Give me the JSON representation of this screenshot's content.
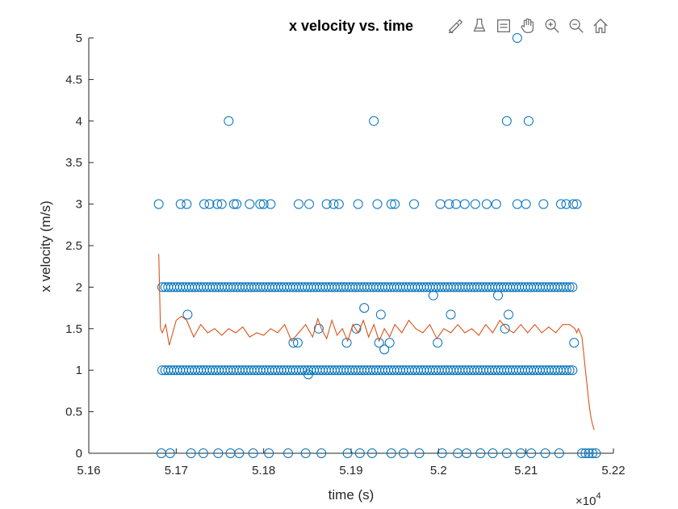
{
  "toolbar": {
    "items": [
      {
        "icon": "brush-data-icon"
      },
      {
        "icon": "colorbar-icon"
      },
      {
        "icon": "legend-icon"
      },
      {
        "icon": "pan-hand-icon"
      },
      {
        "icon": "zoom-in-icon"
      },
      {
        "icon": "zoom-out-icon"
      },
      {
        "icon": "home-icon"
      }
    ]
  },
  "chart_data": {
    "type": "scatter",
    "title": "x velocity vs. time",
    "xlabel": "time (s)",
    "ylabel": "x velocity (m/s)",
    "xlim": [
      51600,
      52200
    ],
    "ylim": [
      0,
      5
    ],
    "x_ticks": [
      51600,
      51700,
      51800,
      51900,
      52000,
      52100,
      52200
    ],
    "x_tick_labels": [
      "5.16",
      "5.17",
      "5.18",
      "5.19",
      "5.2",
      "5.21",
      "5.22"
    ],
    "x_exponent_label": "×10",
    "x_exponent_power": "4",
    "y_ticks": [
      0,
      0.5,
      1,
      1.5,
      2,
      2.5,
      3,
      3.5,
      4,
      4.5,
      5
    ],
    "y_tick_labels": [
      "0",
      "0.5",
      "1",
      "1.5",
      "2",
      "2.5",
      "3",
      "3.5",
      "4",
      "4.5",
      "5"
    ],
    "grid": false,
    "colors": {
      "scatter": "#0072BD",
      "line": "#D95319"
    },
    "series": [
      {
        "kind": "scatter",
        "points": [
          {
            "x": 51680,
            "y": 3
          },
          {
            "x": 51705,
            "y": 3
          },
          {
            "x": 51712,
            "y": 3
          },
          {
            "x": 51732,
            "y": 3
          },
          {
            "x": 51738,
            "y": 3
          },
          {
            "x": 51747,
            "y": 3
          },
          {
            "x": 51752,
            "y": 3
          },
          {
            "x": 51766,
            "y": 3
          },
          {
            "x": 51769,
            "y": 3
          },
          {
            "x": 51784,
            "y": 3
          },
          {
            "x": 51796,
            "y": 3
          },
          {
            "x": 51800,
            "y": 3
          },
          {
            "x": 51808,
            "y": 3
          },
          {
            "x": 51840,
            "y": 3
          },
          {
            "x": 51852,
            "y": 3
          },
          {
            "x": 51872,
            "y": 3
          },
          {
            "x": 51880,
            "y": 3
          },
          {
            "x": 51886,
            "y": 3
          },
          {
            "x": 51908,
            "y": 3
          },
          {
            "x": 51930,
            "y": 3
          },
          {
            "x": 51946,
            "y": 3
          },
          {
            "x": 51950,
            "y": 3
          },
          {
            "x": 51972,
            "y": 3
          },
          {
            "x": 52002,
            "y": 3
          },
          {
            "x": 52012,
            "y": 3
          },
          {
            "x": 52020,
            "y": 3
          },
          {
            "x": 52030,
            "y": 3
          },
          {
            "x": 52042,
            "y": 3
          },
          {
            "x": 52055,
            "y": 3
          },
          {
            "x": 52066,
            "y": 3
          },
          {
            "x": 52090,
            "y": 3
          },
          {
            "x": 52100,
            "y": 3
          },
          {
            "x": 52120,
            "y": 3
          },
          {
            "x": 52140,
            "y": 3
          },
          {
            "x": 52146,
            "y": 3
          },
          {
            "x": 52154,
            "y": 3
          },
          {
            "x": 52158,
            "y": 3
          },
          {
            "x": 51760,
            "y": 4
          },
          {
            "x": 51926,
            "y": 4
          },
          {
            "x": 52078,
            "y": 4
          },
          {
            "x": 52103,
            "y": 4
          },
          {
            "x": 52090,
            "y": 5
          },
          {
            "x": 51713,
            "y": 1.67
          },
          {
            "x": 51915,
            "y": 1.75
          },
          {
            "x": 51934,
            "y": 1.67
          },
          {
            "x": 52014,
            "y": 1.67
          },
          {
            "x": 52080,
            "y": 1.67
          },
          {
            "x": 51906,
            "y": 1.5
          },
          {
            "x": 51863,
            "y": 1.5
          },
          {
            "x": 52076,
            "y": 1.5
          },
          {
            "x": 51895,
            "y": 1.33
          },
          {
            "x": 51932,
            "y": 1.33
          },
          {
            "x": 51944,
            "y": 1.33
          },
          {
            "x": 51834,
            "y": 1.33
          },
          {
            "x": 51839,
            "y": 1.33
          },
          {
            "x": 51999,
            "y": 1.33
          },
          {
            "x": 52155,
            "y": 1.33
          },
          {
            "x": 51938,
            "y": 1.25
          },
          {
            "x": 51851,
            "y": 0.95
          },
          {
            "x": 51994,
            "y": 1.9
          },
          {
            "x": 52068,
            "y": 1.9
          },
          {
            "x": 51683,
            "y": 0
          },
          {
            "x": 51693,
            "y": 0
          },
          {
            "x": 51717,
            "y": 0
          },
          {
            "x": 51731,
            "y": 0
          },
          {
            "x": 51748,
            "y": 0
          },
          {
            "x": 51762,
            "y": 0
          },
          {
            "x": 51772,
            "y": 0
          },
          {
            "x": 51788,
            "y": 0
          },
          {
            "x": 51806,
            "y": 0
          },
          {
            "x": 51828,
            "y": 0
          },
          {
            "x": 51848,
            "y": 0
          },
          {
            "x": 51866,
            "y": 0
          },
          {
            "x": 51896,
            "y": 0
          },
          {
            "x": 51910,
            "y": 0
          },
          {
            "x": 51924,
            "y": 0
          },
          {
            "x": 51946,
            "y": 0
          },
          {
            "x": 51960,
            "y": 0
          },
          {
            "x": 51978,
            "y": 0
          },
          {
            "x": 52004,
            "y": 0
          },
          {
            "x": 52022,
            "y": 0
          },
          {
            "x": 52032,
            "y": 0
          },
          {
            "x": 52048,
            "y": 0
          },
          {
            "x": 52062,
            "y": 0
          },
          {
            "x": 52078,
            "y": 0
          },
          {
            "x": 52094,
            "y": 0
          },
          {
            "x": 52106,
            "y": 0
          },
          {
            "x": 52122,
            "y": 0
          },
          {
            "x": 52138,
            "y": 0
          },
          {
            "x": 52164,
            "y": 0
          },
          {
            "x": 52168,
            "y": 0
          },
          {
            "x": 52172,
            "y": 0
          },
          {
            "x": 52176,
            "y": 0
          },
          {
            "x": 52180,
            "y": 0
          }
        ]
      },
      {
        "kind": "line",
        "x": [
          51680,
          51682,
          51684,
          51688,
          51692,
          51696,
          51700,
          51706,
          51712,
          51720,
          51728,
          51736,
          51744,
          51752,
          51760,
          51768,
          51776,
          51784,
          51792,
          51800,
          51808,
          51816,
          51824,
          51832,
          51840,
          51848,
          51856,
          51862,
          51866,
          51872,
          51878,
          51884,
          51890,
          51896,
          51902,
          51908,
          51914,
          51920,
          51926,
          51932,
          51938,
          51944,
          51950,
          51958,
          51966,
          51974,
          51982,
          51990,
          51998,
          52006,
          52014,
          52022,
          52030,
          52038,
          52046,
          52054,
          52062,
          52070,
          52078,
          52086,
          52094,
          52102,
          52110,
          52118,
          52126,
          52134,
          52142,
          52150,
          52156,
          52158,
          52160,
          52162,
          52164,
          52166,
          52168,
          52170,
          52172,
          52174,
          52176,
          52178
        ],
        "y": [
          2.4,
          1.5,
          1.45,
          1.55,
          1.3,
          1.45,
          1.6,
          1.65,
          1.6,
          1.4,
          1.55,
          1.45,
          1.5,
          1.42,
          1.5,
          1.45,
          1.52,
          1.4,
          1.45,
          1.42,
          1.5,
          1.45,
          1.55,
          1.35,
          1.45,
          1.55,
          1.4,
          1.62,
          1.5,
          1.38,
          1.6,
          1.42,
          1.5,
          1.35,
          1.55,
          1.45,
          1.6,
          1.4,
          1.55,
          1.35,
          1.5,
          1.4,
          1.55,
          1.45,
          1.6,
          1.5,
          1.45,
          1.55,
          1.38,
          1.5,
          1.45,
          1.55,
          1.45,
          1.5,
          1.42,
          1.55,
          1.45,
          1.6,
          1.5,
          1.45,
          1.55,
          1.45,
          1.55,
          1.45,
          1.52,
          1.45,
          1.55,
          1.55,
          1.5,
          1.45,
          1.5,
          1.45,
          1.4,
          1.2,
          1.0,
          0.8,
          0.6,
          0.45,
          0.35,
          0.28
        ]
      }
    ]
  }
}
